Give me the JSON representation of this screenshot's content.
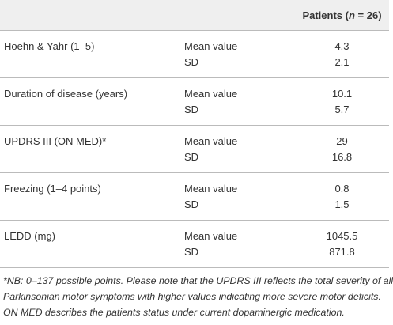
{
  "table": {
    "header": [
      "Patients (",
      "n",
      " = 26)"
    ],
    "groups": [
      {
        "label": "Hoehn & Yahr (1–5)",
        "rows": [
          [
            "Mean value",
            "4.3"
          ],
          [
            "SD",
            "2.1"
          ]
        ]
      },
      {
        "label": "Duration of disease (years)",
        "rows": [
          [
            "Mean value",
            "10.1"
          ],
          [
            "SD",
            "5.7"
          ]
        ]
      },
      {
        "label": "UPDRS III (ON MED)*",
        "rows": [
          [
            "Mean value",
            "29"
          ],
          [
            "SD",
            "16.8"
          ]
        ]
      },
      {
        "label": "Freezing (1–4 points)",
        "rows": [
          [
            "Mean value",
            "0.8"
          ],
          [
            "SD",
            "1.5"
          ]
        ]
      },
      {
        "label": "LEDD (mg)",
        "rows": [
          [
            "Mean value",
            "1045.5"
          ],
          [
            "SD",
            "871.8"
          ]
        ]
      }
    ]
  },
  "footnote": [
    "*NB: 0–137 possible points. Please note that the UPDRS III reflects the total severity of all",
    "Parkinsonian motor symptoms with higher values indicating more severe motor deficits.",
    "ON MED describes the patients status under current dopaminergic medication."
  ]
}
